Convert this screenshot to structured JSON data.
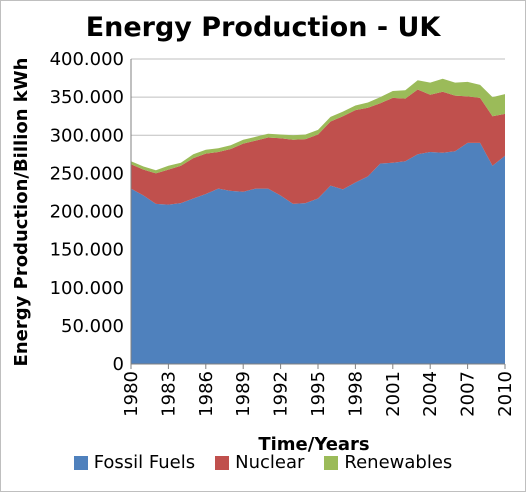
{
  "chart_data": {
    "type": "area",
    "title": "Energy Production - UK",
    "xlabel": "Time/Years",
    "ylabel": "Energy Production/Billion kWh",
    "stacked": true,
    "ylim": [
      0,
      400
    ],
    "y_ticks": [
      "0",
      "50.000",
      "100.000",
      "150.000",
      "200.000",
      "250.000",
      "300.000",
      "350.000",
      "400.000"
    ],
    "x_ticks": [
      "1980",
      "1983",
      "1986",
      "1989",
      "1992",
      "1995",
      "1998",
      "2001",
      "2004",
      "2007",
      "2010"
    ],
    "x": [
      1980,
      1981,
      1982,
      1983,
      1984,
      1985,
      1986,
      1987,
      1988,
      1989,
      1990,
      1991,
      1992,
      1993,
      1994,
      1995,
      1996,
      1997,
      1998,
      1999,
      2000,
      2001,
      2002,
      2003,
      2004,
      2005,
      2006,
      2007,
      2008,
      2009,
      2010
    ],
    "series": [
      {
        "name": "Fossil Fuels",
        "color": "#4f81bd",
        "values": [
          230,
          221,
          210,
          209,
          211,
          217,
          223,
          230,
          227,
          226,
          230,
          230,
          221,
          210,
          211,
          217,
          234,
          229,
          238,
          246,
          263,
          264,
          266,
          275,
          278,
          277,
          279,
          290,
          290,
          260,
          273
        ]
      },
      {
        "name": "Nuclear",
        "color": "#c0504d",
        "values": [
          32,
          34,
          40,
          46,
          49,
          53,
          53,
          48,
          55,
          63,
          63,
          67,
          75,
          84,
          84,
          84,
          84,
          96,
          95,
          90,
          79,
          85,
          82,
          85,
          75,
          80,
          73,
          61,
          59,
          65,
          55
        ]
      },
      {
        "name": "Renewables",
        "color": "#9bbb59",
        "values": [
          4,
          4,
          4,
          5,
          4,
          5,
          5,
          5,
          5,
          5,
          5,
          5,
          5,
          6,
          6,
          6,
          6,
          6,
          6,
          7,
          8,
          9,
          11,
          12,
          16,
          17,
          17,
          19,
          17,
          25,
          26
        ]
      }
    ],
    "legend_position": "bottom",
    "grid": "horizontal"
  }
}
